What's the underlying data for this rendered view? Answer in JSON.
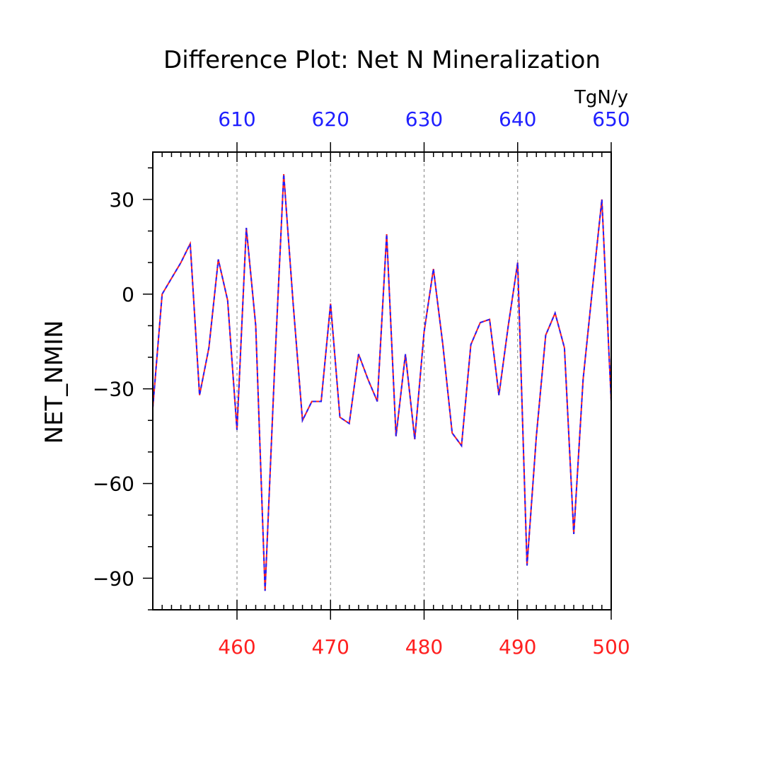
{
  "chart_data": {
    "type": "line",
    "title": "Difference Plot: Net N Mineralization",
    "ylabel": "NET_NMIN",
    "units": "TgN/y",
    "colors": {
      "bottom_axis": "#ff2020",
      "top_axis": "#2020ff",
      "frame": "#000000",
      "grid": "#808080"
    },
    "bottom_x_axis": {
      "range": [
        451,
        500
      ],
      "ticks": [
        460,
        470,
        480,
        490,
        500
      ]
    },
    "top_x_axis": {
      "range": [
        601,
        650
      ],
      "ticks": [
        610,
        620,
        630,
        640,
        650
      ]
    },
    "y_axis": {
      "range": [
        -100,
        45
      ],
      "ticks": [
        30,
        0,
        -30,
        -60,
        -90
      ]
    },
    "grid": "vertical-dashed",
    "series": [
      {
        "color": "#ff2020",
        "style": "solid",
        "axis": "bottom",
        "x": [
          451,
          452,
          453,
          454,
          455,
          456,
          457,
          458,
          459,
          460,
          461,
          462,
          463,
          464,
          465,
          466,
          467,
          468,
          469,
          470,
          471,
          472,
          473,
          474,
          475,
          476,
          477,
          478,
          479,
          480,
          481,
          482,
          483,
          484,
          485,
          486,
          487,
          488,
          489,
          490,
          491,
          492,
          493,
          494,
          495,
          496,
          497,
          498,
          499,
          500
        ],
        "values": [
          -36,
          0,
          5,
          10,
          16,
          -32,
          -17,
          11,
          -2,
          -43,
          21,
          -10,
          -94,
          -25,
          38,
          -3,
          -40,
          -34,
          -34,
          -3,
          -39,
          -41,
          -19,
          -27,
          -34,
          19,
          -45,
          -19,
          -46,
          -12,
          8,
          -16,
          -44,
          -48,
          -16,
          -9,
          -8,
          -32,
          -10,
          10,
          -86,
          -45,
          -13,
          -6,
          -17,
          -76,
          -27,
          2,
          30,
          -34
        ]
      },
      {
        "color": "#2020ff",
        "style": "dashed",
        "axis": "top",
        "x": [
          601,
          602,
          603,
          604,
          605,
          606,
          607,
          608,
          609,
          610,
          611,
          612,
          613,
          614,
          615,
          616,
          617,
          618,
          619,
          620,
          621,
          622,
          623,
          624,
          625,
          626,
          627,
          628,
          629,
          630,
          631,
          632,
          633,
          634,
          635,
          636,
          637,
          638,
          639,
          640,
          641,
          642,
          643,
          644,
          645,
          646,
          647,
          648,
          649,
          650
        ],
        "values": [
          -36,
          0,
          5,
          10,
          16,
          -32,
          -17,
          11,
          -2,
          -43,
          21,
          -10,
          -94,
          -25,
          38,
          -3,
          -40,
          -34,
          -34,
          -3,
          -39,
          -41,
          -19,
          -27,
          -34,
          19,
          -45,
          -19,
          -46,
          -12,
          8,
          -16,
          -44,
          -48,
          -16,
          -9,
          -8,
          -32,
          -10,
          10,
          -86,
          -45,
          -13,
          -6,
          -17,
          -76,
          -27,
          2,
          30,
          -34
        ]
      }
    ]
  }
}
